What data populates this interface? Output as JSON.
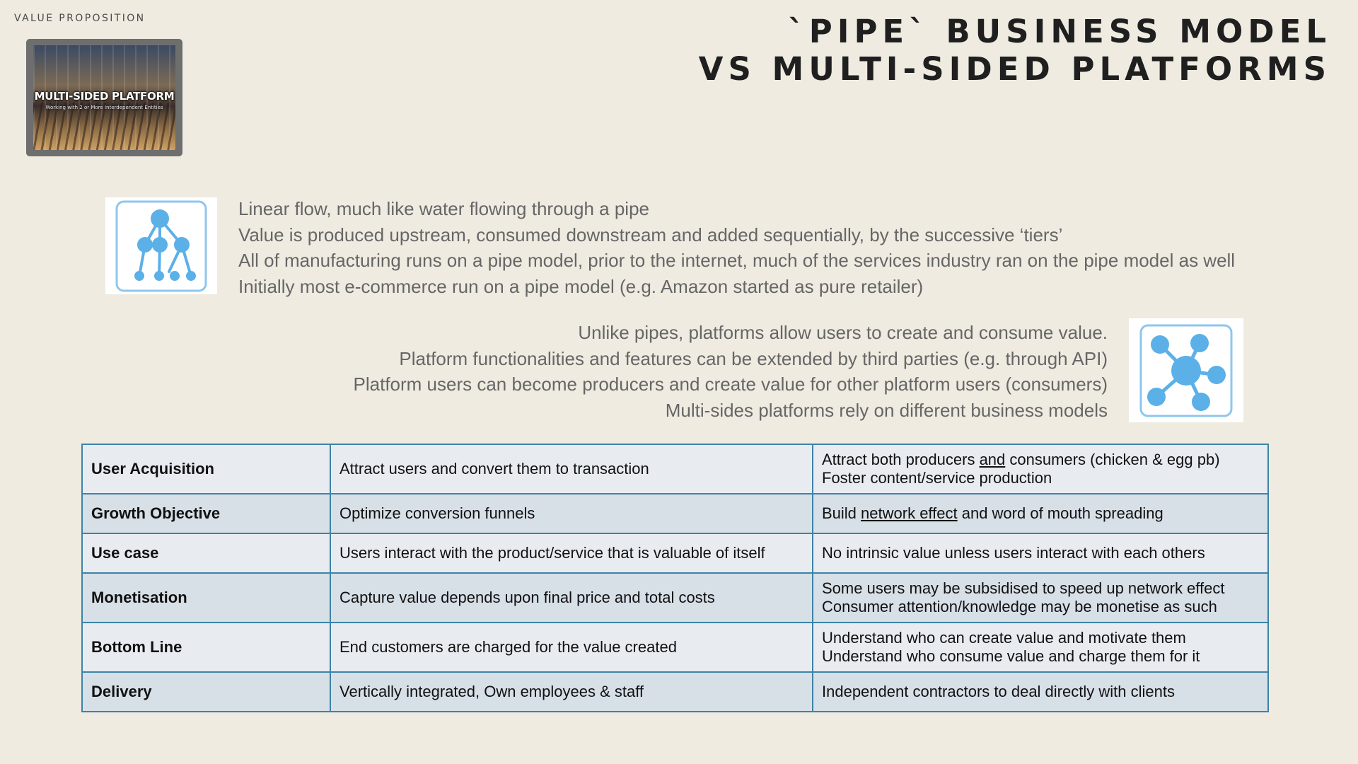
{
  "section_label": "VALUE PROPOSITION",
  "title": {
    "line1": "`PIPE` BUSINESS MODEL",
    "line2": "VS MULTI-SIDED PLATFORMS"
  },
  "thumbnail": {
    "title": "MULTI-SIDED PLATFORM",
    "subtitle": "Working with 2 or More Interdependent Entities"
  },
  "pipe": {
    "icon": "hierarchy-tree-icon",
    "lines": [
      "Linear flow, much like water flowing through a pipe",
      "Value is produced upstream, consumed downstream and added sequentially, by the successive ‘tiers’",
      "All of manufacturing runs on a pipe model, prior to the internet, much of the services industry ran on the pipe model as well",
      "Initially most e-commerce run on a pipe model (e.g. Amazon started as pure retailer)"
    ]
  },
  "platform": {
    "icon": "network-hub-icon",
    "lines": [
      "Unlike pipes, platforms allow users to create and consume value.",
      "Platform functionalities and features can be extended by third parties (e.g. through API)",
      "Platform users can become producers and create value for other platform users (consumers)",
      "Multi-sides platforms rely on different business models"
    ]
  },
  "table": {
    "rows": [
      {
        "label": "User Acquisition",
        "pipe": "Attract users and convert them to transaction",
        "platform": [
          {
            "pre": "Attract both producers ",
            "u": "and",
            "post": " consumers (chicken & egg  pb)"
          },
          {
            "pre": "Foster content/service production",
            "u": "",
            "post": ""
          }
        ]
      },
      {
        "label": "Growth Objective",
        "pipe": "Optimize conversion funnels",
        "platform": [
          {
            "pre": "Build ",
            "u": "network effect",
            "post": "  and word of mouth spreading"
          }
        ]
      },
      {
        "label": "Use case",
        "pipe": "Users interact with the product/service that is valuable of itself",
        "platform": [
          {
            "pre": "No intrinsic value unless users interact with each others",
            "u": "",
            "post": ""
          }
        ]
      },
      {
        "label": "Monetisation",
        "pipe": "Capture value depends upon final price and total costs",
        "platform": [
          {
            "pre": "Some users may be subsidised to speed up network effect",
            "u": "",
            "post": ""
          },
          {
            "pre": "Consumer attention/knowledge may be monetise as such",
            "u": "",
            "post": ""
          }
        ]
      },
      {
        "label": "Bottom Line",
        "pipe": "End customers are charged for the value created",
        "platform": [
          {
            "pre": "Understand who can create value and motivate them",
            "u": "",
            "post": ""
          },
          {
            "pre": "Understand who consume value and charge them for it",
            "u": "",
            "post": ""
          }
        ]
      },
      {
        "label": "Delivery",
        "pipe": "Vertically integrated, Own employees & staff",
        "platform": [
          {
            "pre": "Independent contractors to deal directly with clients",
            "u": "",
            "post": ""
          }
        ]
      }
    ]
  },
  "colors": {
    "background": "#efebe1",
    "icon_blue": "#5bb0e8",
    "table_border": "#3c83a7"
  }
}
